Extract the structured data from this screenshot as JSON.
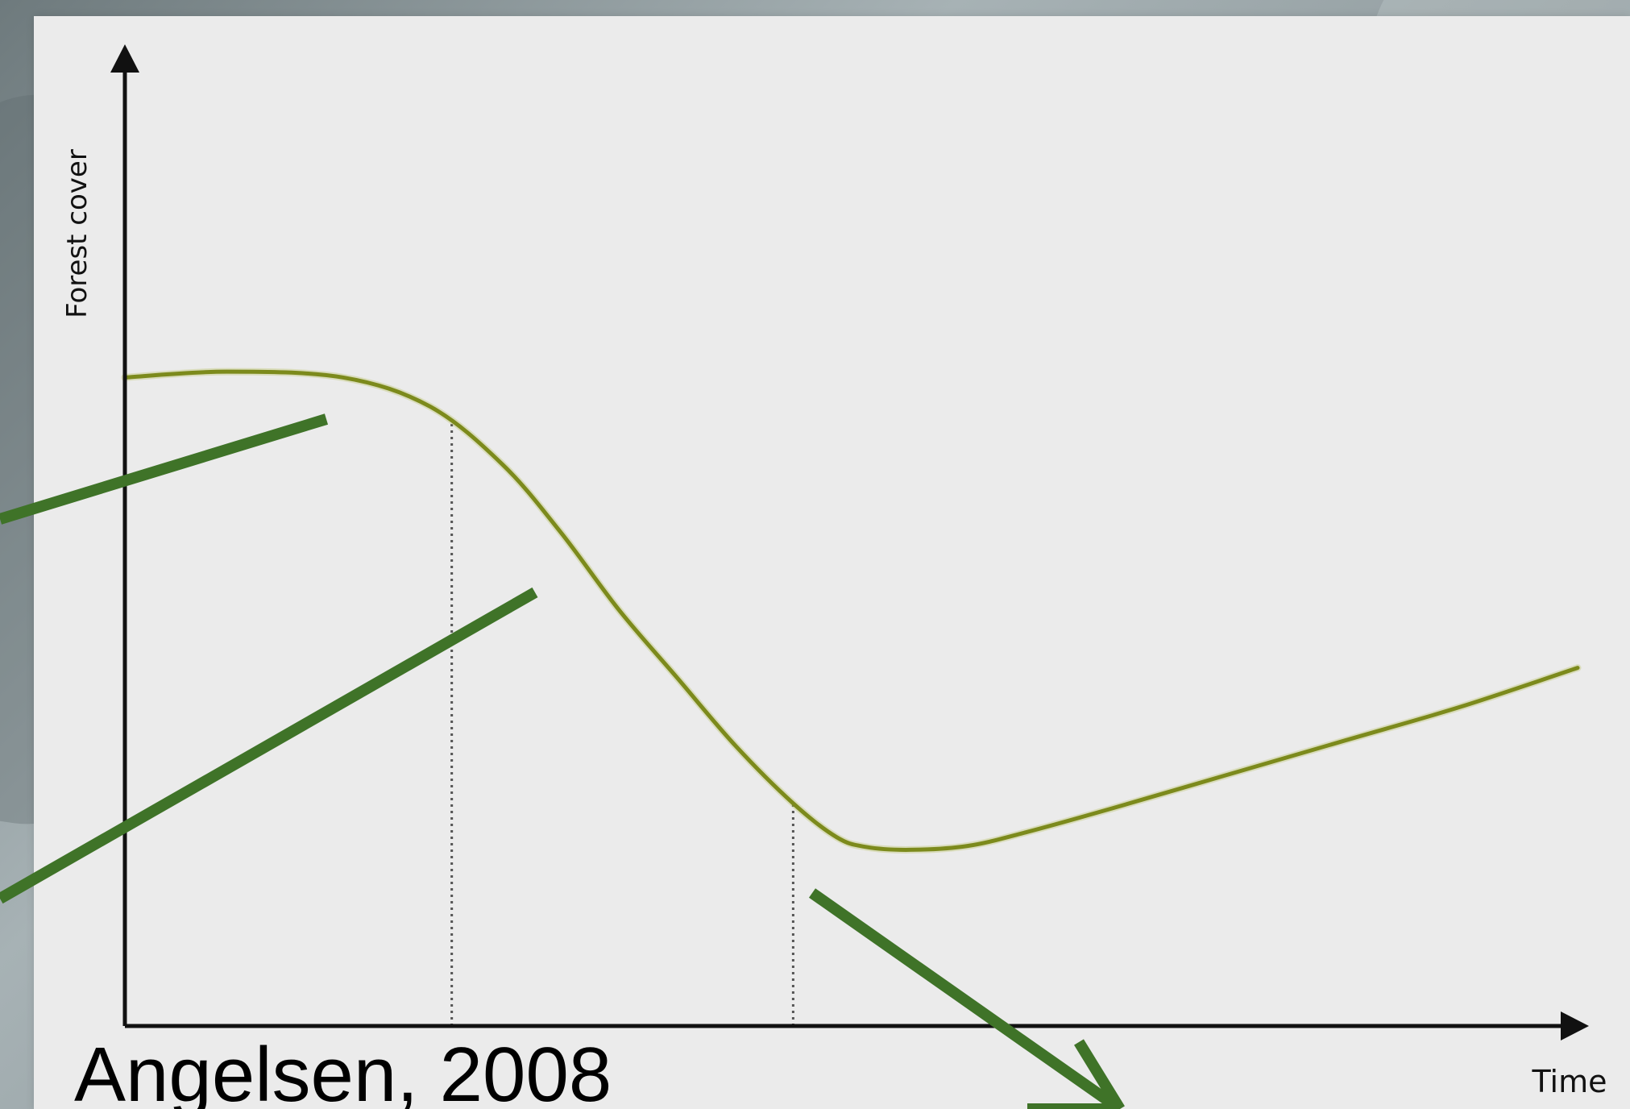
{
  "chart_data": {
    "type": "line",
    "title": "",
    "xlabel": "Time",
    "ylabel": "Forest cover",
    "xlim": [
      0,
      100
    ],
    "ylim": [
      0,
      100
    ],
    "grid": false,
    "series": [
      {
        "x": [
          0,
          7,
          15,
          21,
          26,
          30,
          34,
          38,
          42,
          46,
          49,
          51,
          54,
          58,
          62,
          68,
          76,
          84,
          92,
          100
        ],
        "values": [
          67,
          67.6,
          67,
          64,
          58,
          51,
          43,
          36,
          29,
          23,
          19.5,
          18.5,
          18.2,
          18.6,
          20,
          22.5,
          26,
          29.5,
          33,
          37
        ],
        "color": "#7c8a1c"
      }
    ],
    "reference_lines": [
      {
        "x": 22.5,
        "type": "vertical-dotted"
      },
      {
        "x": 46,
        "type": "vertical-dotted"
      }
    ],
    "citation": "Angelsen, 2008",
    "annotation_arrows": {
      "color": "#3f7328"
    }
  }
}
